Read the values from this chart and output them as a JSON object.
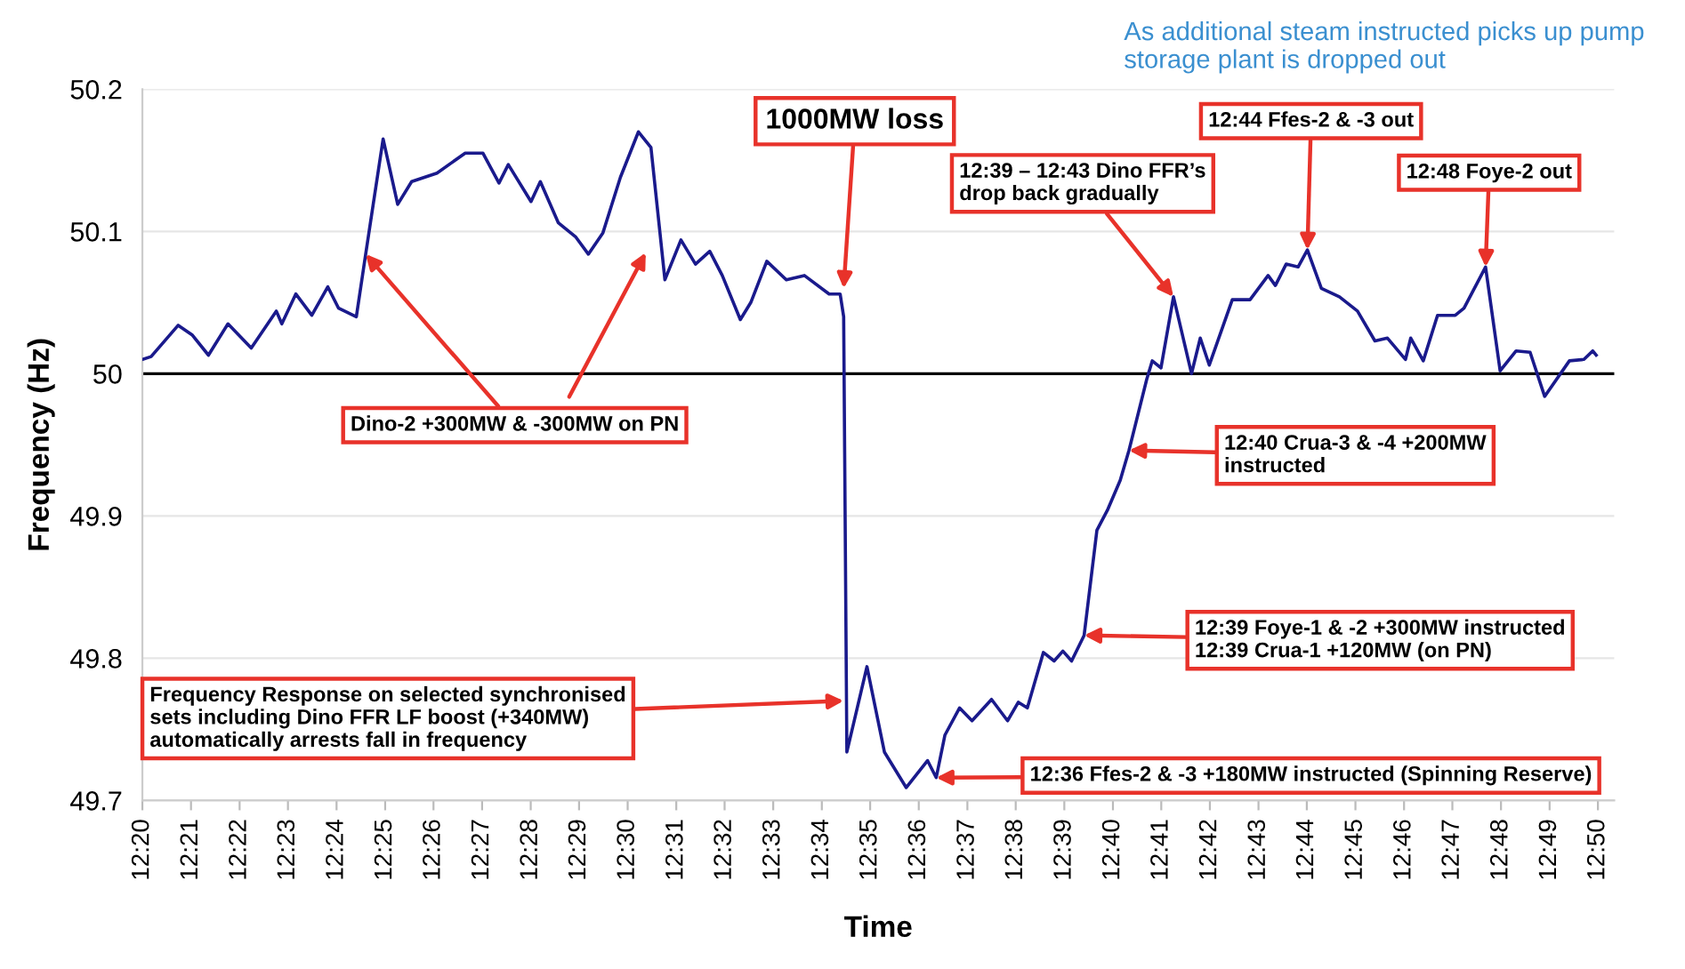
{
  "chart_data": {
    "type": "line",
    "xlabel": "Time",
    "ylabel": "Frequency (Hz)",
    "xlim": [
      12.3333,
      12.8389
    ],
    "ylim": [
      49.7,
      50.2
    ],
    "xticks": [
      {
        "value": 12.3333,
        "label": "12:20"
      },
      {
        "value": 12.35,
        "label": "12:21"
      },
      {
        "value": 12.3667,
        "label": "12:22"
      },
      {
        "value": 12.3833,
        "label": "12:23"
      },
      {
        "value": 12.4,
        "label": "12:24"
      },
      {
        "value": 12.4167,
        "label": "12:25"
      },
      {
        "value": 12.4333,
        "label": "12:26"
      },
      {
        "value": 12.45,
        "label": "12:27"
      },
      {
        "value": 12.4667,
        "label": "12:28"
      },
      {
        "value": 12.4833,
        "label": "12:29"
      },
      {
        "value": 12.5,
        "label": "12:30"
      },
      {
        "value": 12.5167,
        "label": "12:31"
      },
      {
        "value": 12.5333,
        "label": "12:32"
      },
      {
        "value": 12.55,
        "label": "12:33"
      },
      {
        "value": 12.5667,
        "label": "12:34"
      },
      {
        "value": 12.5833,
        "label": "12:35"
      },
      {
        "value": 12.6,
        "label": "12:36"
      },
      {
        "value": 12.6167,
        "label": "12:37"
      },
      {
        "value": 12.6333,
        "label": "12:38"
      },
      {
        "value": 12.65,
        "label": "12:39"
      },
      {
        "value": 12.6667,
        "label": "12:40"
      },
      {
        "value": 12.6833,
        "label": "12:41"
      },
      {
        "value": 12.7,
        "label": "12:42"
      },
      {
        "value": 12.7167,
        "label": "12:43"
      },
      {
        "value": 12.7333,
        "label": "12:44"
      },
      {
        "value": 12.75,
        "label": "12:45"
      },
      {
        "value": 12.7667,
        "label": "12:46"
      },
      {
        "value": 12.7833,
        "label": "12:47"
      },
      {
        "value": 12.8,
        "label": "12:48"
      },
      {
        "value": 12.8167,
        "label": "12:49"
      },
      {
        "value": 12.8333,
        "label": "12:50"
      }
    ],
    "yticks": [
      49.7,
      49.8,
      49.9,
      50,
      50.1,
      50.2
    ],
    "grid": "y",
    "legend": false,
    "marker": "none",
    "line_style": "solid",
    "ref_lines": [
      {
        "axis": "y",
        "value": 50,
        "color": "#000000"
      }
    ],
    "series": [
      {
        "color": "#1a1a8c",
        "x": [
          12.3333,
          12.3363,
          12.3456,
          12.3505,
          12.356,
          12.3627,
          12.3707,
          12.3793,
          12.3812,
          12.386,
          12.3915,
          12.397,
          12.4007,
          12.4068,
          12.41,
          12.416,
          12.421,
          12.4258,
          12.4345,
          12.4442,
          12.4503,
          12.4558,
          12.459,
          12.4668,
          12.47,
          12.4762,
          12.4822,
          12.4865,
          12.4915,
          12.4975,
          12.5037,
          12.508,
          12.5128,
          12.5183,
          12.5233,
          12.5282,
          12.5325,
          12.5387,
          12.5423,
          12.5478,
          12.5545,
          12.5607,
          12.5692,
          12.573,
          12.5742,
          12.5753,
          12.5822,
          12.5882,
          12.5957,
          12.603,
          12.606,
          12.609,
          12.614,
          12.6183,
          12.625,
          12.6305,
          12.6342,
          12.6373,
          12.6428,
          12.6465,
          12.6495,
          12.6525,
          12.6568,
          12.6612,
          12.6648,
          12.6692,
          12.6722,
          12.6783,
          12.6802,
          12.6832,
          12.6875,
          12.6937,
          12.6967,
          12.6998,
          12.7077,
          12.7138,
          12.72,
          12.7225,
          12.7262,
          12.7303,
          12.7335,
          12.7383,
          12.7445,
          12.7507,
          12.7567,
          12.761,
          12.7672,
          12.769,
          12.7733,
          12.7782,
          12.7843,
          12.7873,
          12.7947,
          12.7997,
          12.8052,
          12.81,
          12.815,
          12.8235,
          12.8285,
          12.8315,
          12.8327
        ],
        "values": [
          50.01,
          50.012,
          50.034,
          50.027,
          50.013,
          50.035,
          50.018,
          50.044,
          50.035,
          50.056,
          50.041,
          50.061,
          50.046,
          50.04,
          50.084,
          50.165,
          50.119,
          50.135,
          50.141,
          50.155,
          50.155,
          50.134,
          50.147,
          50.121,
          50.135,
          50.106,
          50.096,
          50.084,
          50.099,
          50.138,
          50.17,
          50.159,
          50.066,
          50.094,
          50.077,
          50.086,
          50.069,
          50.038,
          50.05,
          50.079,
          50.066,
          50.069,
          50.056,
          50.056,
          50.04,
          49.734,
          49.794,
          49.734,
          49.709,
          49.728,
          49.716,
          49.746,
          49.765,
          49.756,
          49.771,
          49.756,
          49.769,
          49.765,
          49.804,
          49.798,
          49.805,
          49.798,
          49.816,
          49.89,
          49.904,
          49.925,
          49.946,
          49.996,
          50.009,
          50.004,
          50.054,
          50.0,
          50.025,
          50.006,
          50.052,
          50.052,
          50.069,
          50.062,
          50.077,
          50.075,
          50.087,
          50.06,
          50.054,
          50.044,
          50.023,
          50.025,
          50.01,
          50.025,
          50.009,
          50.041,
          50.041,
          50.046,
          50.075,
          50.002,
          50.016,
          50.015,
          49.984,
          50.009,
          50.01,
          50.016,
          50.013
        ]
      }
    ],
    "annotations": [
      "As additional steam instructed picks up pump storage plant is dropped out",
      {
        "text": "1000MW loss",
        "x": 12.5742,
        "y": 50.06
      },
      {
        "text": "12:39 – 12:43 Dino FFR’s\ndrop back gradually",
        "x": 12.6875,
        "y": 50.054
      },
      {
        "text": "12:44 Ffes-2 & -3 out",
        "x": 12.7335,
        "y": 50.087
      },
      {
        "text": "12:48 Foye-2 out",
        "x": 12.7947,
        "y": 50.075
      },
      {
        "text": "Dino-2 +300MW & -300MW on PN",
        "x": 12.41,
        "y": 50.084
      },
      {
        "text": "12:40 Crua-3 & -4 +200MW\ninstructed",
        "x": 12.6722,
        "y": 49.946
      },
      {
        "text": "12:39 Foye-1 & -2 +300MW instructed\n12:39 Crua-1 +120MW (on PN)",
        "x": 12.6568,
        "y": 49.816
      },
      {
        "text": "Frequency Response on selected synchronised\nsets including Dino FFR LF boost (+340MW)\nautomatically arrests fall in frequency",
        "x": 12.5742,
        "y": 49.77
      },
      {
        "text": "12:36 Ffes-2 & -3 +180MW instructed (Spinning Reserve)",
        "x": 12.606,
        "y": 49.716
      }
    ]
  }
}
